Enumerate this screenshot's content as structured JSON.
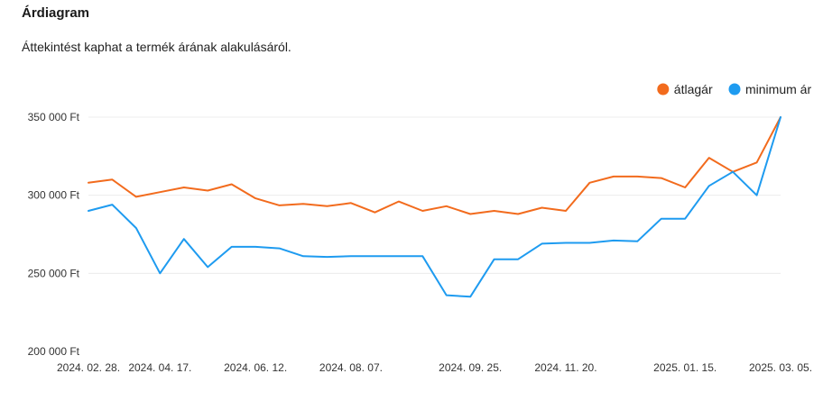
{
  "header": {
    "title": "Árdiagram",
    "description": "Áttekintést kaphat a termék árának alakulásáról."
  },
  "chart_data": {
    "type": "line",
    "title": "",
    "xlabel": "",
    "ylabel": "",
    "ylim": [
      200000,
      350000
    ],
    "y_ticks": [
      {
        "value": 200000,
        "label": "200 000 Ft"
      },
      {
        "value": 250000,
        "label": "250 000 Ft"
      },
      {
        "value": 300000,
        "label": "300 000 Ft"
      },
      {
        "value": 350000,
        "label": "350 000 Ft"
      }
    ],
    "x_tick_labels": [
      "2024. 02. 28.",
      "2024. 04. 17.",
      "2024. 06. 12.",
      "2024. 08. 07.",
      "2024. 09. 25.",
      "2024. 11. 20.",
      "2025. 01. 15.",
      "2025. 03. 05."
    ],
    "x_tick_indices": [
      0,
      3,
      7,
      11,
      16,
      20,
      25,
      29
    ],
    "grid": true,
    "legend_position": "top-right",
    "series": [
      {
        "name": "átlagár",
        "color": "#f26b1d",
        "values": [
          308000,
          310000,
          299000,
          302000,
          305000,
          303000,
          307000,
          298000,
          293500,
          294500,
          293000,
          295000,
          289000,
          296000,
          290000,
          293000,
          288000,
          290000,
          288000,
          292000,
          290000,
          308000,
          312000,
          312000,
          311000,
          305000,
          324000,
          315000,
          321000,
          350000
        ]
      },
      {
        "name": "minimum ár",
        "color": "#1e9bf0",
        "values": [
          290000,
          294000,
          279000,
          250000,
          272000,
          254000,
          267000,
          267000,
          266000,
          261000,
          260500,
          261000,
          261000,
          261000,
          261000,
          236000,
          235000,
          259000,
          259000,
          269000,
          269500,
          269500,
          271000,
          270500,
          285000,
          285000,
          306000,
          315000,
          300000,
          350000
        ]
      }
    ]
  }
}
